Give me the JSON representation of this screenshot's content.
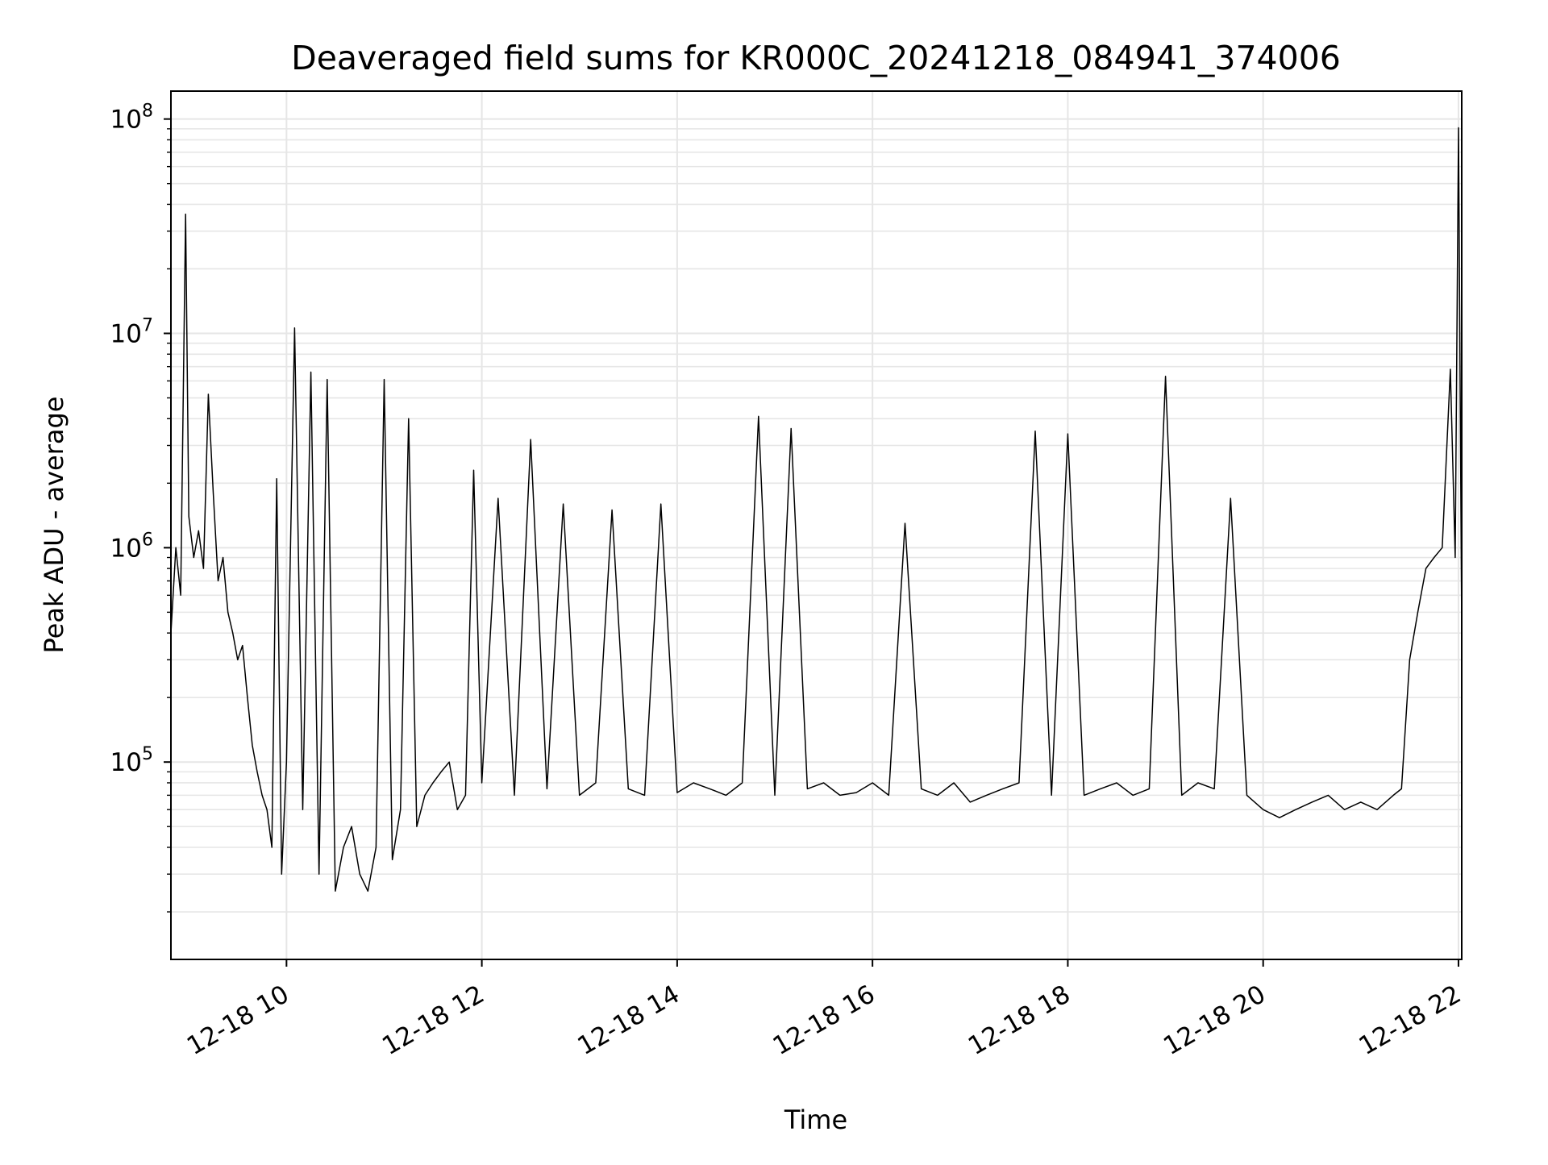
{
  "chart_data": {
    "type": "line",
    "title": "Deaveraged field sums for KR000C_20241218_084941_374006",
    "xlabel": "Time",
    "ylabel": "Peak ADU - average",
    "xlim": [
      "2024-12-18 08:49",
      "2024-12-18 22:02"
    ],
    "ylim": [
      12000,
      135000000
    ],
    "y_scale": "log",
    "grid": true,
    "legend": "none",
    "colors": {
      "line": "#000000",
      "grid": "#e6e6e6",
      "frame": "#000000"
    },
    "x_ticks": [
      {
        "value": "2024-12-18 10:00",
        "label": "12-18 10"
      },
      {
        "value": "2024-12-18 12:00",
        "label": "12-18 12"
      },
      {
        "value": "2024-12-18 14:00",
        "label": "12-18 14"
      },
      {
        "value": "2024-12-18 16:00",
        "label": "12-18 16"
      },
      {
        "value": "2024-12-18 18:00",
        "label": "12-18 18"
      },
      {
        "value": "2024-12-18 20:00",
        "label": "12-18 20"
      },
      {
        "value": "2024-12-18 22:00",
        "label": "12-18 22"
      }
    ],
    "y_ticks": [
      {
        "value": 100000,
        "base": "10",
        "exp": "5"
      },
      {
        "value": 1000000,
        "base": "10",
        "exp": "6"
      },
      {
        "value": 10000000,
        "base": "10",
        "exp": "7"
      },
      {
        "value": 100000000,
        "base": "10",
        "exp": "8"
      }
    ],
    "series": [
      {
        "x": [
          "2024-12-18 08:49",
          "2024-12-18 08:52",
          "2024-12-18 08:55",
          "2024-12-18 08:58",
          "2024-12-18 09:00",
          "2024-12-18 09:03",
          "2024-12-18 09:06",
          "2024-12-18 09:09",
          "2024-12-18 09:12",
          "2024-12-18 09:15",
          "2024-12-18 09:18",
          "2024-12-18 09:21",
          "2024-12-18 09:24",
          "2024-12-18 09:27",
          "2024-12-18 09:30",
          "2024-12-18 09:33",
          "2024-12-18 09:36",
          "2024-12-18 09:39",
          "2024-12-18 09:42",
          "2024-12-18 09:45",
          "2024-12-18 09:48",
          "2024-12-18 09:51",
          "2024-12-18 09:54",
          "2024-12-18 09:57",
          "2024-12-18 10:00",
          "2024-12-18 10:05",
          "2024-12-18 10:10",
          "2024-12-18 10:15",
          "2024-12-18 10:20",
          "2024-12-18 10:25",
          "2024-12-18 10:30",
          "2024-12-18 10:35",
          "2024-12-18 10:40",
          "2024-12-18 10:45",
          "2024-12-18 10:50",
          "2024-12-18 10:55",
          "2024-12-18 11:00",
          "2024-12-18 11:05",
          "2024-12-18 11:10",
          "2024-12-18 11:15",
          "2024-12-18 11:20",
          "2024-12-18 11:25",
          "2024-12-18 11:30",
          "2024-12-18 11:35",
          "2024-12-18 11:40",
          "2024-12-18 11:45",
          "2024-12-18 11:50",
          "2024-12-18 11:55",
          "2024-12-18 12:00",
          "2024-12-18 12:10",
          "2024-12-18 12:20",
          "2024-12-18 12:30",
          "2024-12-18 12:40",
          "2024-12-18 12:50",
          "2024-12-18 13:00",
          "2024-12-18 13:10",
          "2024-12-18 13:20",
          "2024-12-18 13:30",
          "2024-12-18 13:40",
          "2024-12-18 13:50",
          "2024-12-18 14:00",
          "2024-12-18 14:10",
          "2024-12-18 14:20",
          "2024-12-18 14:30",
          "2024-12-18 14:40",
          "2024-12-18 14:50",
          "2024-12-18 15:00",
          "2024-12-18 15:10",
          "2024-12-18 15:20",
          "2024-12-18 15:30",
          "2024-12-18 15:40",
          "2024-12-18 15:50",
          "2024-12-18 16:00",
          "2024-12-18 16:10",
          "2024-12-18 16:20",
          "2024-12-18 16:30",
          "2024-12-18 16:40",
          "2024-12-18 16:50",
          "2024-12-18 17:00",
          "2024-12-18 17:10",
          "2024-12-18 17:20",
          "2024-12-18 17:30",
          "2024-12-18 17:40",
          "2024-12-18 17:50",
          "2024-12-18 18:00",
          "2024-12-18 18:10",
          "2024-12-18 18:20",
          "2024-12-18 18:30",
          "2024-12-18 18:40",
          "2024-12-18 18:50",
          "2024-12-18 19:00",
          "2024-12-18 19:10",
          "2024-12-18 19:20",
          "2024-12-18 19:30",
          "2024-12-18 19:40",
          "2024-12-18 19:50",
          "2024-12-18 20:00",
          "2024-12-18 20:10",
          "2024-12-18 20:20",
          "2024-12-18 20:30",
          "2024-12-18 20:40",
          "2024-12-18 20:50",
          "2024-12-18 21:00",
          "2024-12-18 21:10",
          "2024-12-18 21:20",
          "2024-12-18 21:25",
          "2024-12-18 21:30",
          "2024-12-18 21:35",
          "2024-12-18 21:40",
          "2024-12-18 21:45",
          "2024-12-18 21:50",
          "2024-12-18 21:55",
          "2024-12-18 21:58",
          "2024-12-18 22:00",
          "2024-12-18 22:02"
        ],
        "y": [
          400000,
          1000000,
          600000,
          36000000,
          1400000,
          900000,
          1200000,
          800000,
          5200000,
          1800000,
          700000,
          900000,
          500000,
          400000,
          300000,
          350000,
          200000,
          120000,
          90000,
          70000,
          60000,
          40000,
          2100000,
          30000,
          100000,
          10600000,
          60000,
          6600000,
          30000,
          6100000,
          25000,
          40000,
          50000,
          30000,
          25000,
          40000,
          6100000,
          35000,
          60000,
          4000000,
          50000,
          70000,
          80000,
          90000,
          100000,
          60000,
          70000,
          2300000,
          80000,
          1700000,
          70000,
          3200000,
          75000,
          1600000,
          70000,
          80000,
          1500000,
          75000,
          70000,
          1600000,
          72000,
          80000,
          75000,
          70000,
          80000,
          4100000,
          70000,
          3600000,
          75000,
          80000,
          70000,
          72000,
          80000,
          70000,
          1300000,
          75000,
          70000,
          80000,
          65000,
          70000,
          75000,
          80000,
          3500000,
          70000,
          3400000,
          70000,
          75000,
          80000,
          70000,
          75000,
          6300000,
          70000,
          80000,
          75000,
          1700000,
          70000,
          60000,
          55000,
          60000,
          65000,
          70000,
          60000,
          65000,
          60000,
          70000,
          75000,
          300000,
          500000,
          800000,
          900000,
          1000000,
          6800000,
          900000,
          91000000,
          400000
        ]
      }
    ]
  }
}
